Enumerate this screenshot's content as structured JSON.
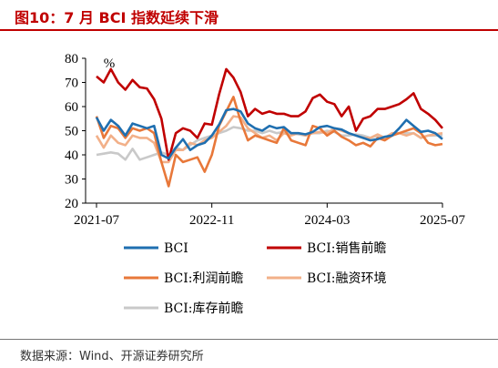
{
  "page": {
    "title": "图10：7 月 BCI 指数延续下滑",
    "source": "数据来源：Wind、开源证券研究所"
  },
  "chart_data": {
    "type": "line",
    "unit_label": "%",
    "ylim": [
      20,
      80
    ],
    "yticks": [
      20,
      30,
      40,
      50,
      60,
      70,
      80
    ],
    "xticks": [
      "2021-07",
      "2022-11",
      "2024-03",
      "2025-07"
    ],
    "x_start": "2021-07",
    "grid": false,
    "legend_position": "bottom",
    "categories": [
      "2021-07",
      "2021-08",
      "2021-09",
      "2021-10",
      "2021-11",
      "2021-12",
      "2022-01",
      "2022-02",
      "2022-03",
      "2022-04",
      "2022-05",
      "2022-06",
      "2022-07",
      "2022-08",
      "2022-09",
      "2022-10",
      "2022-11",
      "2022-12",
      "2023-01",
      "2023-02",
      "2023-03",
      "2023-04",
      "2023-05",
      "2023-06",
      "2023-07",
      "2023-08",
      "2023-09",
      "2023-10",
      "2023-11",
      "2023-12",
      "2024-01",
      "2024-02",
      "2024-03",
      "2024-04",
      "2024-05",
      "2024-06",
      "2024-07",
      "2024-08",
      "2024-09",
      "2024-10",
      "2024-11",
      "2024-12",
      "2025-01",
      "2025-02",
      "2025-03",
      "2025-04",
      "2025-05",
      "2025-06",
      "2025-07"
    ],
    "series": [
      {
        "name": "BCI",
        "color": "#1f6fb0",
        "values": [
          55.5,
          50,
          54.5,
          52,
          48,
          53,
          52,
          51,
          52,
          40,
          38.5,
          43,
          46.5,
          42,
          44,
          45,
          48,
          52.5,
          58.5,
          59,
          58,
          53,
          51,
          50,
          52,
          51,
          51.5,
          49,
          49,
          48.5,
          49.5,
          51.5,
          52,
          51,
          50.5,
          49,
          48,
          47,
          46,
          46.5,
          47.5,
          48,
          51,
          54.5,
          52,
          49.5,
          50,
          49,
          46.5
        ]
      },
      {
        "name": "BCI:销售前瞻",
        "color": "#c00000",
        "values": [
          72.5,
          70,
          75.5,
          70,
          67,
          71,
          68,
          67.5,
          63,
          55,
          38,
          49,
          51,
          50,
          47,
          53,
          52.5,
          65,
          75.5,
          72,
          66,
          56,
          59,
          57,
          58,
          57,
          57,
          56,
          56,
          58,
          63.5,
          65,
          62,
          61,
          56,
          60,
          50,
          55,
          56,
          59,
          59,
          60,
          61,
          63,
          65.5,
          59,
          57,
          54.5,
          51
        ]
      },
      {
        "name": "BCI:利润前瞻",
        "color": "#e8783a",
        "values": [
          56,
          47,
          52,
          51,
          47,
          51,
          50,
          51,
          49,
          37,
          27,
          40,
          37,
          38,
          39,
          33,
          40,
          52,
          58,
          64,
          54,
          46,
          48,
          47,
          46,
          45,
          51,
          46,
          45,
          44,
          52,
          51,
          48,
          50,
          47.5,
          46,
          44,
          45,
          43.5,
          47,
          46,
          48,
          49,
          50,
          51,
          49,
          45,
          44,
          44.5
        ]
      },
      {
        "name": "BCI:融资环境",
        "color": "#f2b089",
        "values": [
          48,
          43,
          48,
          45,
          44,
          48,
          47,
          47,
          45,
          37,
          37,
          42,
          42,
          45,
          44,
          46,
          47,
          49.5,
          52,
          56,
          55.5,
          51,
          49,
          47,
          48,
          46,
          49,
          48,
          49,
          48,
          49,
          49.5,
          49,
          51,
          50,
          49,
          48,
          47,
          47,
          48.5,
          47,
          49,
          49,
          48,
          49,
          47,
          48,
          48.5,
          49
        ]
      },
      {
        "name": "BCI:库存前瞻",
        "color": "#c9c9c9",
        "values": [
          40,
          40.5,
          41,
          40.5,
          38,
          42.5,
          38,
          39,
          40,
          41,
          40,
          43,
          42,
          44,
          46,
          47,
          48,
          49,
          50,
          51.5,
          51,
          50,
          50,
          49,
          50,
          49,
          49.5,
          49,
          48.5,
          48,
          49,
          49,
          50,
          49.5,
          48,
          48,
          48.5,
          48,
          47,
          48,
          47,
          48,
          49,
          49,
          49,
          47,
          48,
          48,
          48
        ]
      }
    ]
  }
}
